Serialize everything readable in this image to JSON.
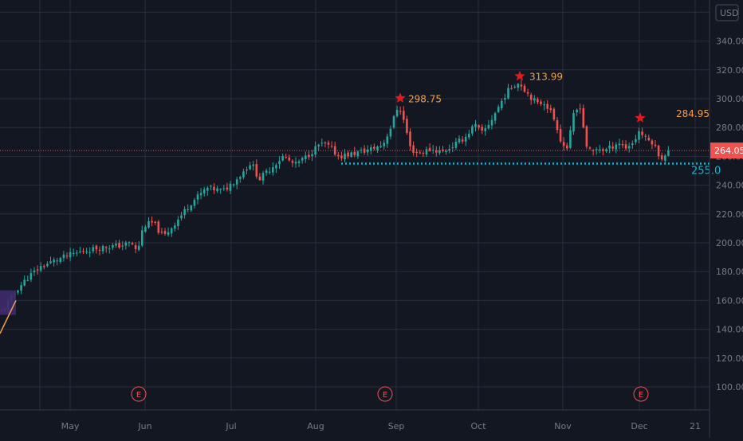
{
  "chart_data": {
    "type": "candlestick",
    "currency": "USD",
    "y_axis": {
      "ticks": [
        100,
        120,
        140,
        160,
        180,
        200,
        220,
        240,
        260,
        280,
        300,
        320,
        340
      ],
      "tick_labels": [
        "100.00",
        "120.00",
        "140.00",
        "160.00",
        "180.00",
        "200.00",
        "220.00",
        "240.00",
        "260.00",
        "280.00",
        "300.00",
        "320.00",
        "340.00"
      ],
      "range": [
        82,
        362
      ]
    },
    "x_axis": {
      "labels": [
        "May",
        "Jun",
        "Jul",
        "Aug",
        "Sep",
        "Oct",
        "Nov",
        "Dec",
        "21"
      ],
      "label_positions": [
        88,
        182,
        290,
        396,
        497,
        600,
        706,
        802,
        872
      ],
      "gridlines": [
        50,
        88,
        182,
        290,
        396,
        497,
        600,
        706,
        802,
        872
      ]
    },
    "current_price": {
      "value": 264.05,
      "label": "264.05"
    },
    "support_line": {
      "value": 255.0,
      "label": "255.0"
    },
    "annotations": [
      {
        "label": "298.75",
        "value": 298.75,
        "marker": "star"
      },
      {
        "label": "313.99",
        "value": 313.99,
        "marker": "star"
      },
      {
        "label": "284.95",
        "value": 284.95,
        "marker": "star"
      }
    ],
    "earnings_markers": [
      {
        "label": "E"
      },
      {
        "label": "E"
      },
      {
        "label": "E"
      }
    ],
    "colors": {
      "background": "#131722",
      "grid": "#2a2e39",
      "up": "#26a69a",
      "down": "#ef5350",
      "annotation_text": "#f0a04b",
      "star": "#e01b1b",
      "support": "#00bcd4",
      "price_line": "#ef5350",
      "axis_text": "#787b86"
    },
    "candle_keys": [
      [
        140,
        170
      ],
      [
        165,
        178
      ],
      [
        185,
        200
      ],
      [
        200,
        232
      ],
      [
        232,
        262
      ],
      [
        262,
        278
      ],
      [
        268,
        315
      ],
      [
        270,
        285
      ],
      [
        298,
        300
      ]
    ]
  }
}
